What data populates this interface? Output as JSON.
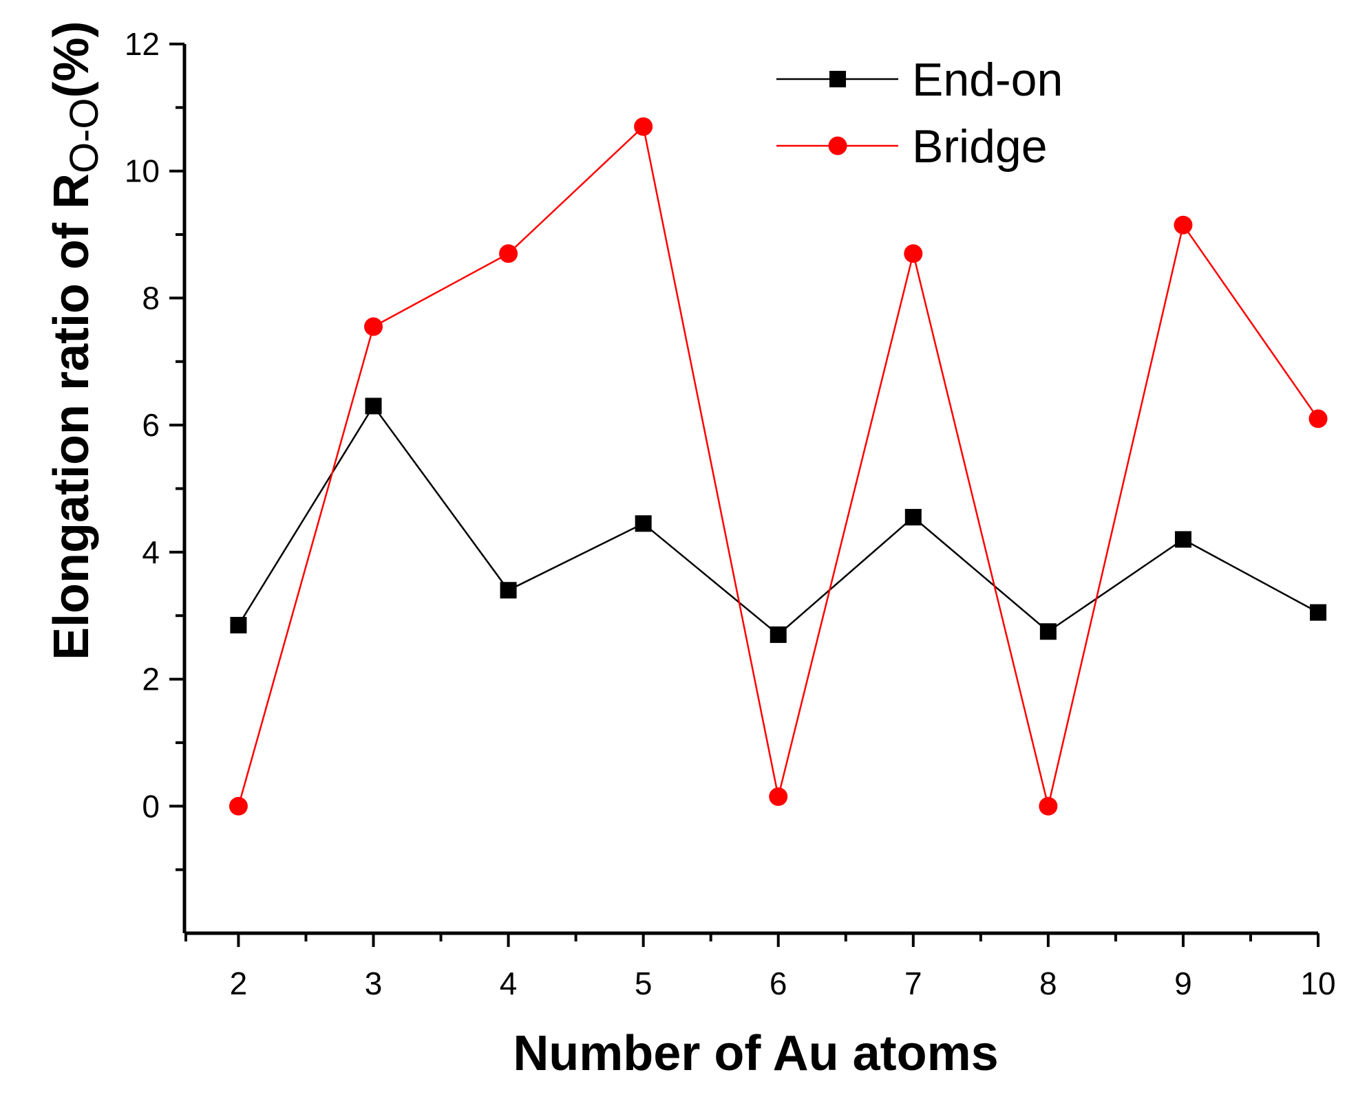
{
  "chart_data": {
    "type": "line",
    "title": "",
    "xlabel": "Number of Au atoms",
    "ylabel": {
      "main": "Elongation ratio of  R",
      "subscript": "O-O",
      "suffix": "(%)"
    },
    "x": [
      2,
      3,
      4,
      5,
      6,
      7,
      8,
      9,
      10
    ],
    "xlim": [
      1.6,
      10
    ],
    "ylim": [
      -2,
      12
    ],
    "x_ticks": [
      "2",
      "3",
      "4",
      "5",
      "6",
      "7",
      "8",
      "9",
      "10"
    ],
    "y_ticks": [
      "0",
      "2",
      "4",
      "6",
      "8",
      "10",
      "12"
    ],
    "legend_position": "top-right",
    "grid": false,
    "series": [
      {
        "name": "End-on",
        "color": "#000000",
        "marker": "square",
        "values": [
          2.85,
          6.3,
          3.4,
          4.45,
          2.7,
          4.55,
          2.75,
          4.2,
          3.05
        ]
      },
      {
        "name": "Bridge",
        "color": "#ff0000",
        "marker": "circle",
        "values": [
          0.0,
          7.55,
          8.7,
          10.7,
          0.15,
          8.7,
          0.0,
          9.15,
          6.1
        ]
      }
    ]
  }
}
